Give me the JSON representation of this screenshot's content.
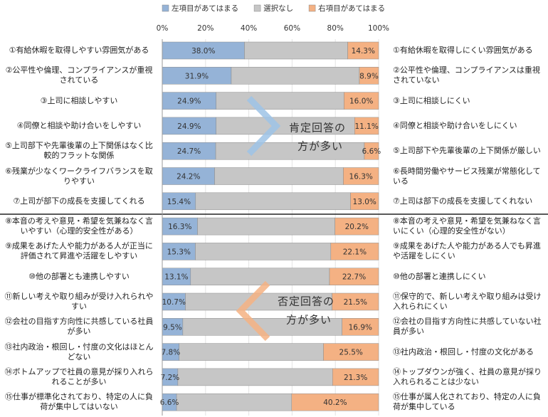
{
  "chart_data": {
    "type": "stacked_bar_horizontal",
    "categories": [
      "①有給休暇を取得しやすい雰囲気がある",
      "②公平性や倫理、コンプライアンスが重視されている",
      "③上司に相談しやすい",
      "④同僚と相談や助け合いをしやすい",
      "⑤上司部下や先輩後輩の上下関係はなく比較的フラットな関係",
      "⑥残業が少なくワークライフバランスを取りやすい",
      "⑦上司が部下の成長を支援してくれる",
      "⑧本音の考えや意見・希望を気兼ねなく言いやすい（心理的安全性がある）",
      "⑨成果をあげた人や能力がある人が正当に評価されて昇進や活躍をしやすい",
      "⑩他の部署とも連携しやすい",
      "⑪新しい考えや取り組みが受け入れられやすい",
      "⑫会社の目指す方向性に共感している社員が多い",
      "⑬社内政治・根回し・忖度の文化はほとんどない",
      "⑭ボトムアップで社員の意見が採り入れられることが多い",
      "⑮仕事が標準化されており、特定の人に負荷が集中してはいない"
    ],
    "right_categories": [
      "①有給休暇を取得しにくい雰囲気がある",
      "②公平性や倫理、コンプライアンスは重視されていない",
      "③上司に相談しにくい",
      "④同僚と相談や助け合いをしにくい",
      "⑤上司部下や先輩後輩の上下関係が厳しい",
      "⑥長時間労働やサービス残業が常態化している",
      "⑦上司は部下の成長を支援してくれない",
      "⑧本音の考えや意見・希望を気兼ねなく言いにくい（心理的安全性がない）",
      "⑨成果をあげた人や能力がある人でも昇進や活躍をしにくい",
      "⑩他の部署と連携しにくい",
      "⑪保守的で、新しい考えや取り組みは受け入れられにくい",
      "⑫会社の目指す方向性に共感していない社員が多い",
      "⑬社内政治・根回し・忖度の文化がある",
      "⑭トップダウンが強く、社員の意見が採り入れられることは少ない",
      "⑮仕事が属人化されており、特定の人に負荷が集中している"
    ],
    "series": [
      {
        "name": "左項目があてはまる",
        "color": "#95b3d7",
        "values": [
          38.0,
          31.9,
          24.9,
          24.9,
          24.7,
          24.2,
          15.4,
          16.3,
          15.3,
          13.1,
          10.7,
          9.5,
          7.8,
          7.2,
          6.6
        ],
        "value_labels": [
          "38.0%",
          "31.9%",
          "24.9%",
          "24.9%",
          "24.7%",
          "24.2%",
          "15.4%",
          "16.3%",
          "15.3%",
          "13.1%",
          "10.7%",
          "9.5%",
          "7.8%",
          "7.2%",
          "6.6%"
        ]
      },
      {
        "name": "選択なし",
        "color": "#c6c6c6",
        "values": [
          47.7,
          59.2,
          59.1,
          64.0,
          68.7,
          59.5,
          71.6,
          63.5,
          62.6,
          64.2,
          67.8,
          73.6,
          66.7,
          71.5,
          53.2
        ]
      },
      {
        "name": "右項目があてはまる",
        "color": "#f4b183",
        "values": [
          14.3,
          8.9,
          16.0,
          11.1,
          6.6,
          16.3,
          13.0,
          20.2,
          22.1,
          22.7,
          21.5,
          16.9,
          25.5,
          21.3,
          40.2
        ],
        "value_labels": [
          "14.3%",
          "8.9%",
          "16.0%",
          "11.1%",
          "6.6%",
          "16.3%",
          "13.0%",
          "20.2%",
          "22.1%",
          "22.7%",
          "21.5%",
          "16.9%",
          "25.5%",
          "21.3%",
          "40.2%"
        ]
      }
    ],
    "xlim": [
      0,
      100
    ],
    "xticks": [
      {
        "value": 0,
        "label": "0%"
      },
      {
        "value": 20,
        "label": "20%"
      },
      {
        "value": 40,
        "label": "40%"
      },
      {
        "value": 60,
        "label": "60%"
      },
      {
        "value": 80,
        "label": "80%"
      },
      {
        "value": 100,
        "label": "100%"
      }
    ],
    "grid": true,
    "legend": "top",
    "annotations": [
      {
        "lines": [
          "肯定回答の",
          "方が多い"
        ],
        "color": "#2e75b6"
      },
      {
        "lines": [
          "否定回答の",
          "方が多い"
        ],
        "color": "#c55a11"
      }
    ]
  }
}
